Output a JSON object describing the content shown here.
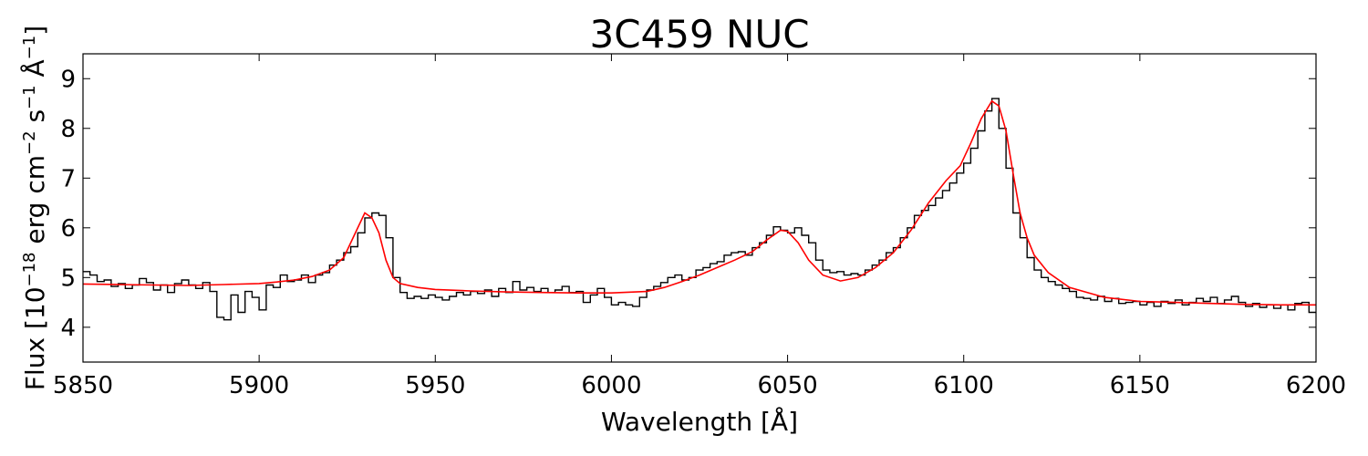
{
  "chart_data": {
    "type": "line",
    "title": "3C459 NUC",
    "xlabel": "Wavelength [Å]",
    "ylabel_base": "Flux [10",
    "ylabel_exp": "−18",
    "ylabel_mid": " erg cm",
    "ylabel_exp2": "−2",
    "ylabel_mid2": " s",
    "ylabel_exp3": "−1",
    "ylabel_mid3": " Å",
    "ylabel_exp4": "−1",
    "ylabel_end": "]",
    "xlim": [
      5850,
      6200
    ],
    "ylim": [
      3.3,
      9.5
    ],
    "x_ticks": [
      5850,
      5900,
      5950,
      6000,
      6050,
      6100,
      6150,
      6200
    ],
    "y_ticks": [
      4,
      5,
      6,
      7,
      8,
      9
    ],
    "grid": false,
    "series": [
      {
        "style": "step",
        "color": "#000000",
        "points": [
          [
            5850,
            5.12
          ],
          [
            5852,
            5.05
          ],
          [
            5854,
            4.92
          ],
          [
            5856,
            4.95
          ],
          [
            5858,
            4.82
          ],
          [
            5860,
            4.88
          ],
          [
            5862,
            4.78
          ],
          [
            5864,
            4.85
          ],
          [
            5866,
            4.98
          ],
          [
            5868,
            4.9
          ],
          [
            5870,
            4.75
          ],
          [
            5872,
            4.85
          ],
          [
            5874,
            4.7
          ],
          [
            5876,
            4.88
          ],
          [
            5878,
            4.95
          ],
          [
            5880,
            4.85
          ],
          [
            5882,
            4.78
          ],
          [
            5884,
            4.9
          ],
          [
            5886,
            4.72
          ],
          [
            5888,
            4.2
          ],
          [
            5890,
            4.15
          ],
          [
            5892,
            4.65
          ],
          [
            5894,
            4.3
          ],
          [
            5896,
            4.72
          ],
          [
            5898,
            4.6
          ],
          [
            5900,
            4.35
          ],
          [
            5902,
            4.85
          ],
          [
            5904,
            4.8
          ],
          [
            5906,
            5.05
          ],
          [
            5908,
            4.92
          ],
          [
            5910,
            4.95
          ],
          [
            5912,
            5.05
          ],
          [
            5914,
            4.9
          ],
          [
            5916,
            5.05
          ],
          [
            5918,
            5.1
          ],
          [
            5920,
            5.25
          ],
          [
            5922,
            5.35
          ],
          [
            5924,
            5.5
          ],
          [
            5926,
            5.62
          ],
          [
            5928,
            5.9
          ],
          [
            5930,
            6.2
          ],
          [
            5932,
            6.3
          ],
          [
            5934,
            6.25
          ],
          [
            5936,
            5.8
          ],
          [
            5938,
            5.0
          ],
          [
            5940,
            4.7
          ],
          [
            5942,
            4.58
          ],
          [
            5944,
            4.62
          ],
          [
            5946,
            4.58
          ],
          [
            5948,
            4.65
          ],
          [
            5950,
            4.6
          ],
          [
            5952,
            4.55
          ],
          [
            5954,
            4.62
          ],
          [
            5956,
            4.7
          ],
          [
            5958,
            4.65
          ],
          [
            5960,
            4.72
          ],
          [
            5962,
            4.68
          ],
          [
            5964,
            4.75
          ],
          [
            5966,
            4.62
          ],
          [
            5968,
            4.78
          ],
          [
            5970,
            4.7
          ],
          [
            5972,
            4.92
          ],
          [
            5974,
            4.75
          ],
          [
            5976,
            4.8
          ],
          [
            5978,
            4.72
          ],
          [
            5980,
            4.78
          ],
          [
            5982,
            4.7
          ],
          [
            5984,
            4.75
          ],
          [
            5986,
            4.82
          ],
          [
            5988,
            4.7
          ],
          [
            5990,
            4.72
          ],
          [
            5992,
            4.5
          ],
          [
            5994,
            4.65
          ],
          [
            5996,
            4.78
          ],
          [
            5998,
            4.6
          ],
          [
            6000,
            4.45
          ],
          [
            6002,
            4.5
          ],
          [
            6004,
            4.45
          ],
          [
            6006,
            4.42
          ],
          [
            6008,
            4.6
          ],
          [
            6010,
            4.75
          ],
          [
            6012,
            4.82
          ],
          [
            6014,
            4.9
          ],
          [
            6016,
            5.0
          ],
          [
            6018,
            5.05
          ],
          [
            6020,
            4.95
          ],
          [
            6022,
            5.0
          ],
          [
            6024,
            5.15
          ],
          [
            6026,
            5.2
          ],
          [
            6028,
            5.28
          ],
          [
            6030,
            5.32
          ],
          [
            6032,
            5.45
          ],
          [
            6034,
            5.5
          ],
          [
            6036,
            5.52
          ],
          [
            6038,
            5.45
          ],
          [
            6040,
            5.6
          ],
          [
            6042,
            5.7
          ],
          [
            6044,
            5.85
          ],
          [
            6046,
            6.02
          ],
          [
            6048,
            5.95
          ],
          [
            6050,
            5.9
          ],
          [
            6052,
            6.0
          ],
          [
            6054,
            5.85
          ],
          [
            6056,
            5.7
          ],
          [
            6058,
            5.35
          ],
          [
            6060,
            5.15
          ],
          [
            6062,
            5.1
          ],
          [
            6064,
            5.12
          ],
          [
            6066,
            5.05
          ],
          [
            6068,
            5.08
          ],
          [
            6070,
            5.05
          ],
          [
            6072,
            5.15
          ],
          [
            6074,
            5.25
          ],
          [
            6076,
            5.35
          ],
          [
            6078,
            5.5
          ],
          [
            6080,
            5.6
          ],
          [
            6082,
            5.8
          ],
          [
            6084,
            6.0
          ],
          [
            6086,
            6.25
          ],
          [
            6088,
            6.35
          ],
          [
            6090,
            6.45
          ],
          [
            6092,
            6.6
          ],
          [
            6094,
            6.75
          ],
          [
            6096,
            6.9
          ],
          [
            6098,
            7.1
          ],
          [
            6100,
            7.3
          ],
          [
            6102,
            7.6
          ],
          [
            6104,
            7.95
          ],
          [
            6106,
            8.35
          ],
          [
            6108,
            8.6
          ],
          [
            6110,
            8.0
          ],
          [
            6112,
            7.2
          ],
          [
            6114,
            6.3
          ],
          [
            6116,
            5.8
          ],
          [
            6118,
            5.4
          ],
          [
            6120,
            5.15
          ],
          [
            6122,
            5.0
          ],
          [
            6124,
            4.92
          ],
          [
            6126,
            4.85
          ],
          [
            6128,
            4.78
          ],
          [
            6130,
            4.72
          ],
          [
            6132,
            4.6
          ],
          [
            6134,
            4.58
          ],
          [
            6136,
            4.55
          ],
          [
            6138,
            4.62
          ],
          [
            6140,
            4.52
          ],
          [
            6142,
            4.58
          ],
          [
            6144,
            4.48
          ],
          [
            6146,
            4.5
          ],
          [
            6148,
            4.52
          ],
          [
            6150,
            4.45
          ],
          [
            6152,
            4.5
          ],
          [
            6154,
            4.42
          ],
          [
            6156,
            4.52
          ],
          [
            6158,
            4.48
          ],
          [
            6160,
            4.55
          ],
          [
            6162,
            4.45
          ],
          [
            6164,
            4.5
          ],
          [
            6166,
            4.58
          ],
          [
            6168,
            4.52
          ],
          [
            6170,
            4.6
          ],
          [
            6172,
            4.48
          ],
          [
            6174,
            4.55
          ],
          [
            6176,
            4.62
          ],
          [
            6178,
            4.5
          ],
          [
            6180,
            4.42
          ],
          [
            6182,
            4.48
          ],
          [
            6184,
            4.4
          ],
          [
            6186,
            4.45
          ],
          [
            6188,
            4.38
          ],
          [
            6190,
            4.45
          ],
          [
            6192,
            4.35
          ],
          [
            6194,
            4.48
          ],
          [
            6196,
            4.5
          ],
          [
            6198,
            4.3
          ]
        ]
      },
      {
        "style": "line",
        "color": "#ff0000",
        "points": [
          [
            5850,
            4.87
          ],
          [
            5860,
            4.86
          ],
          [
            5870,
            4.85
          ],
          [
            5880,
            4.84
          ],
          [
            5890,
            4.86
          ],
          [
            5900,
            4.88
          ],
          [
            5905,
            4.91
          ],
          [
            5910,
            4.95
          ],
          [
            5915,
            5.02
          ],
          [
            5920,
            5.15
          ],
          [
            5924,
            5.4
          ],
          [
            5927,
            5.85
          ],
          [
            5930,
            6.3
          ],
          [
            5932,
            6.2
          ],
          [
            5934,
            5.9
          ],
          [
            5936,
            5.35
          ],
          [
            5938,
            5.0
          ],
          [
            5940,
            4.88
          ],
          [
            5945,
            4.8
          ],
          [
            5950,
            4.76
          ],
          [
            5960,
            4.73
          ],
          [
            5970,
            4.71
          ],
          [
            5980,
            4.7
          ],
          [
            5990,
            4.69
          ],
          [
            6000,
            4.69
          ],
          [
            6010,
            4.72
          ],
          [
            6015,
            4.8
          ],
          [
            6020,
            4.92
          ],
          [
            6025,
            5.05
          ],
          [
            6030,
            5.2
          ],
          [
            6035,
            5.35
          ],
          [
            6040,
            5.52
          ],
          [
            6044,
            5.75
          ],
          [
            6048,
            5.95
          ],
          [
            6050,
            5.93
          ],
          [
            6053,
            5.7
          ],
          [
            6056,
            5.35
          ],
          [
            6060,
            5.05
          ],
          [
            6065,
            4.93
          ],
          [
            6070,
            5.0
          ],
          [
            6075,
            5.2
          ],
          [
            6080,
            5.5
          ],
          [
            6085,
            5.95
          ],
          [
            6090,
            6.5
          ],
          [
            6095,
            6.95
          ],
          [
            6099,
            7.25
          ],
          [
            6102,
            7.7
          ],
          [
            6105,
            8.2
          ],
          [
            6108,
            8.55
          ],
          [
            6110,
            8.45
          ],
          [
            6112,
            7.95
          ],
          [
            6114,
            7.1
          ],
          [
            6116,
            6.3
          ],
          [
            6118,
            5.8
          ],
          [
            6120,
            5.45
          ],
          [
            6124,
            5.1
          ],
          [
            6130,
            4.8
          ],
          [
            6140,
            4.6
          ],
          [
            6150,
            4.52
          ],
          [
            6160,
            4.5
          ],
          [
            6170,
            4.48
          ],
          [
            6180,
            4.46
          ],
          [
            6190,
            4.45
          ],
          [
            6200,
            4.45
          ]
        ]
      }
    ]
  }
}
